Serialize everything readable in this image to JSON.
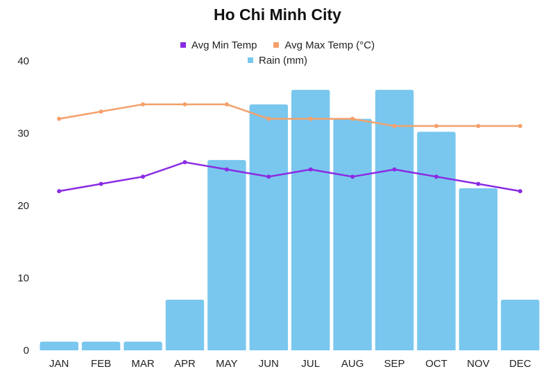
{
  "chart_data": {
    "type": "bar+line",
    "title": "Ho Chi Minh City",
    "categories": [
      "JAN",
      "FEB",
      "MAR",
      "APR",
      "MAY",
      "JUN",
      "JUL",
      "AUG",
      "SEP",
      "OCT",
      "NOV",
      "DEC"
    ],
    "series": [
      {
        "name": "Avg Min Temp",
        "type": "line",
        "color": "#8a2be2",
        "values": [
          22,
          23,
          24,
          26,
          25,
          24,
          25,
          24,
          25,
          24,
          23,
          22
        ]
      },
      {
        "name": "Avg Max Temp (°C)",
        "type": "line",
        "color": "#f4a06a",
        "values": [
          32,
          33,
          34,
          34,
          34,
          32,
          32,
          32,
          31,
          31,
          31,
          31
        ]
      },
      {
        "name": "Rain (mm)",
        "type": "bar",
        "color": "#79c7ee",
        "values": [
          1.2,
          1.2,
          1.2,
          7,
          26.3,
          34,
          36,
          32,
          36,
          30.2,
          22.4,
          7
        ]
      }
    ],
    "yticks": [
      "0",
      "10",
      "20",
      "30",
      "40"
    ],
    "ylim": [
      0,
      40
    ],
    "xlabel": "",
    "ylabel": "",
    "legend_position": "top-center"
  }
}
